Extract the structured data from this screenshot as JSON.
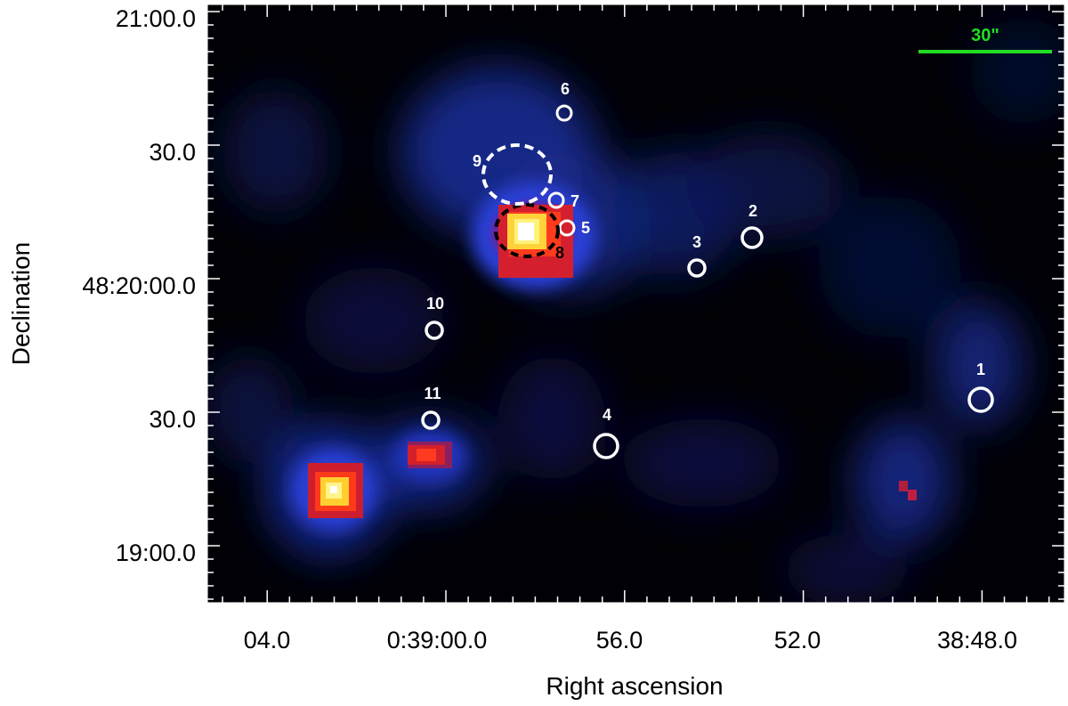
{
  "scale_bar": {
    "label": "30\"",
    "color": "#22dd22"
  },
  "axes": {
    "x_label": "Right ascension",
    "y_label": "Declination",
    "x_ticks": [
      "04.0",
      "0:39:00.0",
      "56.0",
      "52.0",
      "38:48.0"
    ],
    "y_ticks": [
      "21:00.0",
      "30.0",
      "48:20:00.0",
      "30.0",
      "19:00.0"
    ]
  },
  "sources": [
    {
      "id": "1",
      "style": "solid"
    },
    {
      "id": "2",
      "style": "solid"
    },
    {
      "id": "3",
      "style": "solid"
    },
    {
      "id": "4",
      "style": "solid"
    },
    {
      "id": "5",
      "style": "solid"
    },
    {
      "id": "6",
      "style": "solid"
    },
    {
      "id": "7",
      "style": "solid"
    },
    {
      "id": "8",
      "style": "dashed-black"
    },
    {
      "id": "9",
      "style": "dashed-white"
    },
    {
      "id": "10",
      "style": "solid"
    },
    {
      "id": "11",
      "style": "solid"
    }
  ],
  "colors": {
    "background": "#000005",
    "marker": "#ffffff",
    "marker_8": "#000000",
    "axis_text": "#000000"
  }
}
